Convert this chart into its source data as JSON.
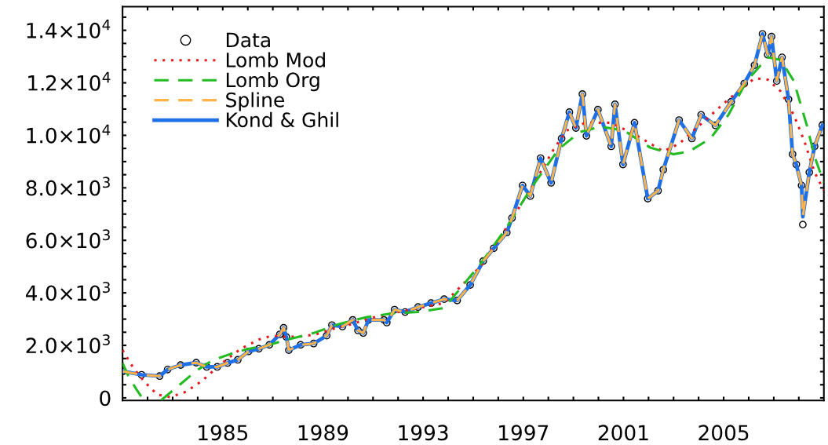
{
  "chart_data": {
    "type": "line",
    "xlim": [
      1981,
      2009
    ],
    "ylim": [
      -100,
      14900
    ],
    "xticks": [
      {
        "value": 1982,
        "label": null
      },
      {
        "value": 1983,
        "label": null
      },
      {
        "value": 1984,
        "label": null
      },
      1985,
      {
        "value": 1986,
        "label": null
      },
      {
        "value": 1987,
        "label": null
      },
      {
        "value": 1988,
        "label": null
      },
      1989,
      {
        "value": 1990,
        "label": null
      },
      {
        "value": 1991,
        "label": null
      },
      {
        "value": 1992,
        "label": null
      },
      1993,
      {
        "value": 1994,
        "label": null
      },
      {
        "value": 1995,
        "label": null
      },
      {
        "value": 1996,
        "label": null
      },
      1997,
      {
        "value": 1998,
        "label": null
      },
      {
        "value": 1999,
        "label": null
      },
      {
        "value": 2000,
        "label": null
      },
      2001,
      {
        "value": 2002,
        "label": null
      },
      {
        "value": 2003,
        "label": null
      },
      {
        "value": 2004,
        "label": null
      },
      2005,
      {
        "value": 2006,
        "label": null
      },
      {
        "value": 2007,
        "label": null
      },
      {
        "value": 2008,
        "label": null
      }
    ],
    "yticks": [
      0,
      {
        "value": 500,
        "label": null
      },
      {
        "value": 1000,
        "label": null
      },
      {
        "value": 1500,
        "label": null
      },
      {
        "value": 2000,
        "label": "2.0×10$^{3}$"
      },
      {
        "value": 2500,
        "label": null
      },
      {
        "value": 3000,
        "label": null
      },
      {
        "value": 3500,
        "label": null
      },
      {
        "value": 4000,
        "label": "4.0×10$^{3}$"
      },
      {
        "value": 4500,
        "label": null
      },
      {
        "value": 5000,
        "label": null
      },
      {
        "value": 5500,
        "label": null
      },
      {
        "value": 6000,
        "label": "6.0×10$^{3}$"
      },
      {
        "value": 6500,
        "label": null
      },
      {
        "value": 7000,
        "label": null
      },
      {
        "value": 7500,
        "label": null
      },
      {
        "value": 8000,
        "label": "8.0×10$^{3}$"
      },
      {
        "value": 8500,
        "label": null
      },
      {
        "value": 9000,
        "label": null
      },
      {
        "value": 9500,
        "label": null
      },
      {
        "value": 10000,
        "label": "1.0×10$^{4}$"
      },
      {
        "value": 10500,
        "label": null
      },
      {
        "value": 11000,
        "label": null
      },
      {
        "value": 11500,
        "label": null
      },
      {
        "value": 12000,
        "label": "1.2×10$^{4}$"
      },
      {
        "value": 12500,
        "label": null
      },
      {
        "value": 13000,
        "label": null
      },
      {
        "value": 13500,
        "label": null
      },
      {
        "value": 14000,
        "label": "1.4×10$^{4}$"
      },
      {
        "value": 14500,
        "label": null
      }
    ],
    "grid": false,
    "legend": "top left",
    "series": [
      {
        "name": "Data",
        "type": "scatter",
        "marker": "circle",
        "color": "#000000",
        "x": [
          1981.02,
          1981.76,
          1982.48,
          1982.8,
          1983.32,
          1983.94,
          1984.36,
          1984.78,
          1985.19,
          1985.6,
          1986.03,
          1986.44,
          1986.86,
          1987.28,
          1987.43,
          1987.54,
          1987.64,
          1988.11,
          1988.63,
          1989.15,
          1989.36,
          1989.78,
          1990.19,
          1990.4,
          1990.61,
          1990.82,
          1991.44,
          1991.55,
          1991.86,
          1992.28,
          1992.8,
          1993.32,
          1993.84,
          1994.36,
          1994.88,
          1995.4,
          1995.82,
          1996.34,
          1996.55,
          1996.97,
          1997.28,
          1997.69,
          1998.11,
          1998.53,
          1998.84,
          1999.1,
          1999.36,
          1999.52,
          1999.98,
          2000.51,
          2000.66,
          2000.98,
          2001.44,
          2001.97,
          2002.38,
          2002.59,
          2003.22,
          2003.73,
          2004.1,
          2004.67,
          2005.3,
          2005.82,
          2006.23,
          2006.55,
          2006.76,
          2006.91,
          2007.12,
          2007.33,
          2007.59,
          2007.75,
          2007.9,
          2008.11,
          2008.16,
          2008.42,
          2008.63,
          2008.94
        ],
        "values": [
          1010,
          880,
          830,
          1080,
          1250,
          1340,
          1180,
          1180,
          1330,
          1450,
          1770,
          1870,
          2020,
          2420,
          2670,
          2320,
          1820,
          2020,
          2070,
          2370,
          2770,
          2720,
          2970,
          2570,
          2470,
          2970,
          2970,
          2870,
          3360,
          3270,
          3460,
          3610,
          3760,
          3710,
          4300,
          5210,
          5700,
          6300,
          6850,
          8090,
          7690,
          9130,
          8190,
          9880,
          10880,
          10280,
          11570,
          9980,
          10980,
          9580,
          11180,
          8890,
          10480,
          7590,
          7890,
          8690,
          10580,
          9880,
          10780,
          10380,
          11280,
          11970,
          12670,
          13860,
          13070,
          13760,
          12070,
          12970,
          11370,
          9280,
          8890,
          8090,
          6600,
          8590,
          9580,
          10380
        ]
      },
      {
        "name": "Lomb Mod",
        "line_style": "dotted",
        "color": "#e8191b",
        "x": [
          1981.0,
          1981.44,
          1981.86,
          1982.38,
          1982.9,
          1983.53,
          1984.15,
          1984.98,
          1985.72,
          1986.44,
          1986.97,
          1987.48,
          1988.11,
          1988.73,
          1989.36,
          1990.19,
          1990.82,
          1991.76,
          1992.8,
          1993.84,
          1995.3,
          1996.34,
          1997.38,
          1998.22,
          1998.73,
          1999.47,
          2000.51,
          2001.55,
          2002.59,
          2003.22,
          2004.15,
          2005.19,
          2006.23,
          2006.76,
          2007.28,
          2007.8,
          2008.22,
          2008.63,
          2009.0
        ],
        "values": [
          1820,
          1130,
          630,
          130,
          30,
          230,
          630,
          1330,
          1870,
          2220,
          2370,
          2320,
          2340,
          2420,
          2620,
          2820,
          3020,
          3220,
          3420,
          3610,
          5010,
          6500,
          8090,
          9480,
          10180,
          10480,
          10480,
          9980,
          9390,
          9680,
          10480,
          11370,
          12170,
          12120,
          11670,
          10780,
          9780,
          8590,
          7900
        ]
      },
      {
        "name": "Lomb Org",
        "line_style": "dashed",
        "color": "#22bb22",
        "x": [
          1981.0,
          1981.23,
          1981.55,
          1981.85,
          1982.2,
          1982.54,
          1983.32,
          1983.94,
          1984.57,
          1985.3,
          1986.03,
          1986.86,
          1987.59,
          1988.63,
          1989.67,
          1990.72,
          1991.76,
          1992.8,
          1993.84,
          1995.3,
          1996.34,
          1997.38,
          1998.42,
          1999.26,
          2000.09,
          2001.03,
          2002.07,
          2003.0,
          2003.63,
          2004.47,
          2005.19,
          2005.92,
          2006.76,
          2007.28,
          2007.8,
          2008.32,
          2008.63,
          2009.0
        ],
        "values": [
          1330,
          830,
          330,
          -90,
          null,
          -90,
          530,
          1030,
          1420,
          1670,
          1870,
          2020,
          2220,
          2470,
          2820,
          3070,
          3220,
          3270,
          3420,
          5110,
          6500,
          8090,
          9480,
          10130,
          10330,
          10180,
          9530,
          9280,
          9390,
          9880,
          10780,
          12070,
          12970,
          12870,
          12070,
          10380,
          9190,
          8200
        ]
      },
      {
        "name": "Spline",
        "line_style": "dashed",
        "color": "#ffb347",
        "x": [
          1981.02,
          1981.76,
          1982.48,
          1982.8,
          1983.32,
          1983.94,
          1984.36,
          1984.78,
          1985.19,
          1985.6,
          1986.03,
          1986.44,
          1986.86,
          1987.28,
          1987.43,
          1987.54,
          1987.64,
          1988.11,
          1988.63,
          1989.15,
          1989.36,
          1989.78,
          1990.19,
          1990.4,
          1990.61,
          1990.82,
          1991.44,
          1991.55,
          1991.86,
          1992.28,
          1992.8,
          1993.32,
          1993.84,
          1994.36,
          1994.88,
          1995.4,
          1995.82,
          1996.34,
          1996.55,
          1996.97,
          1997.28,
          1997.69,
          1998.11,
          1998.53,
          1998.84,
          1999.1,
          1999.36,
          1999.52,
          1999.98,
          2000.51,
          2000.66,
          2000.98,
          2001.44,
          2001.97,
          2002.38,
          2002.59,
          2003.22,
          2003.73,
          2004.1,
          2004.67,
          2005.3,
          2005.82,
          2006.23,
          2006.55,
          2006.76,
          2006.91,
          2007.12,
          2007.33,
          2007.59,
          2007.75,
          2007.9,
          2008.11,
          2008.16,
          2008.42,
          2008.63,
          2008.94
        ],
        "values": [
          1010,
          880,
          830,
          1080,
          1250,
          1340,
          1180,
          1180,
          1330,
          1450,
          1770,
          1870,
          2020,
          2420,
          2670,
          2320,
          1820,
          2020,
          2070,
          2370,
          2770,
          2720,
          2970,
          2570,
          2470,
          2970,
          2970,
          2870,
          3360,
          3270,
          3460,
          3610,
          3760,
          3710,
          4300,
          5210,
          5700,
          6300,
          6850,
          8090,
          7690,
          9130,
          8190,
          9880,
          10880,
          10280,
          11570,
          9980,
          10980,
          9580,
          11180,
          8890,
          10480,
          7590,
          7890,
          8690,
          10580,
          9880,
          10780,
          10380,
          11280,
          11970,
          12670,
          13860,
          13070,
          13760,
          12070,
          12970,
          11370,
          9280,
          8890,
          8090,
          6900,
          8590,
          9580,
          10380
        ]
      },
      {
        "name": "Kond & Ghil",
        "line_style": "solid",
        "color": "#1f6fe6",
        "x": [
          1981.02,
          1981.76,
          1982.48,
          1982.8,
          1983.32,
          1983.94,
          1984.36,
          1984.78,
          1985.19,
          1985.6,
          1986.03,
          1986.44,
          1986.86,
          1987.28,
          1987.43,
          1987.54,
          1987.64,
          1988.11,
          1988.63,
          1989.15,
          1989.36,
          1989.78,
          1990.19,
          1990.4,
          1990.61,
          1990.82,
          1991.44,
          1991.55,
          1991.86,
          1992.28,
          1992.8,
          1993.32,
          1993.84,
          1994.36,
          1994.88,
          1995.4,
          1995.82,
          1996.34,
          1996.55,
          1996.97,
          1997.28,
          1997.69,
          1998.11,
          1998.53,
          1998.84,
          1999.1,
          1999.36,
          1999.52,
          1999.98,
          2000.51,
          2000.66,
          2000.98,
          2001.44,
          2001.97,
          2002.38,
          2002.59,
          2003.22,
          2003.73,
          2004.1,
          2004.67,
          2005.3,
          2005.82,
          2006.23,
          2006.55,
          2006.76,
          2006.91,
          2007.12,
          2007.33,
          2007.59,
          2007.75,
          2007.9,
          2008.11,
          2008.16,
          2008.42,
          2008.63,
          2008.94
        ],
        "values": [
          1010,
          880,
          830,
          1080,
          1250,
          1340,
          1180,
          1180,
          1330,
          1450,
          1770,
          1870,
          2020,
          2420,
          2670,
          2320,
          1820,
          2020,
          2070,
          2370,
          2770,
          2720,
          2970,
          2570,
          2470,
          2970,
          2970,
          2870,
          3360,
          3270,
          3460,
          3610,
          3760,
          3710,
          4300,
          5210,
          5700,
          6300,
          6850,
          8090,
          7690,
          9130,
          8190,
          9880,
          10880,
          10280,
          11570,
          9980,
          10980,
          9580,
          11180,
          8890,
          10480,
          7590,
          7890,
          8690,
          10580,
          9880,
          10780,
          10380,
          11280,
          11970,
          12670,
          13860,
          13070,
          13760,
          12070,
          12970,
          11370,
          9280,
          8890,
          8090,
          6900,
          8590,
          9580,
          10380
        ]
      }
    ]
  }
}
